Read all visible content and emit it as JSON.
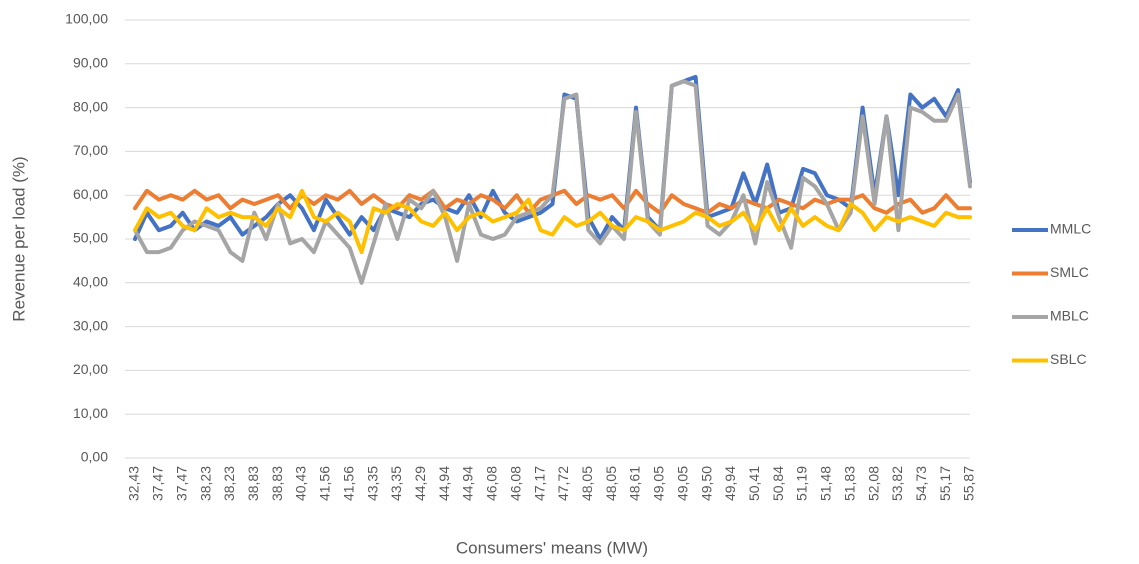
{
  "chart_data": {
    "type": "line",
    "x_label": "Consumers' means (MW)",
    "y_label": "Revenue per load (%)",
    "categories": [
      "32,43",
      null,
      "37,47",
      null,
      "37,47",
      null,
      "38,23",
      null,
      "38,23",
      null,
      "38,83",
      null,
      "38,83",
      null,
      "40,43",
      null,
      "41,56",
      null,
      "41,56",
      null,
      "43,35",
      null,
      "43,35",
      null,
      "44,29",
      null,
      "44,94",
      null,
      "44,94",
      null,
      "46,08",
      null,
      "46,08",
      null,
      "47,17",
      null,
      "47,72",
      null,
      "48,05",
      null,
      "48,05",
      null,
      "48,61",
      null,
      "49,05",
      null,
      "49,05",
      null,
      "49,50",
      null,
      "49,94",
      null,
      "50,41",
      null,
      "50,84",
      null,
      "51,19",
      null,
      "51,48",
      null,
      "51,83",
      null,
      "52,08",
      null,
      "53,82",
      null,
      "54,73",
      null,
      "55,17",
      null,
      "55,87"
    ],
    "series": [
      {
        "name": "MMLC",
        "color": "#4472c4",
        "values": [
          50,
          56,
          52,
          53,
          56,
          52,
          54,
          53,
          55,
          51,
          53,
          55,
          58,
          60,
          57,
          52,
          59,
          55,
          51,
          55,
          52,
          57,
          56,
          55,
          58,
          59,
          57,
          56,
          60,
          55,
          61,
          56,
          54,
          55,
          56,
          58,
          83,
          82,
          55,
          50,
          55,
          52,
          80,
          55,
          52,
          85,
          86,
          87,
          55,
          56,
          57,
          65,
          58,
          67,
          56,
          57,
          66,
          65,
          60,
          59,
          57,
          80,
          60,
          78,
          60,
          83,
          80,
          82,
          78,
          84,
          63
        ]
      },
      {
        "name": "SMLC",
        "color": "#ed7d31",
        "values": [
          57,
          61,
          59,
          60,
          59,
          61,
          59,
          60,
          57,
          59,
          58,
          59,
          60,
          57,
          60,
          58,
          60,
          59,
          61,
          58,
          60,
          58,
          57,
          60,
          59,
          61,
          57,
          59,
          58,
          60,
          59,
          57,
          60,
          56,
          59,
          60,
          61,
          58,
          60,
          59,
          60,
          57,
          61,
          58,
          56,
          60,
          58,
          57,
          56,
          58,
          57,
          59,
          58,
          57,
          59,
          58,
          57,
          59,
          58,
          59,
          59,
          60,
          57,
          56,
          58,
          59,
          56,
          57,
          60,
          57,
          57
        ]
      },
      {
        "name": "MBLC",
        "color": "#a5a5a5",
        "values": [
          52,
          47,
          47,
          48,
          52,
          54,
          53,
          52,
          47,
          45,
          56,
          50,
          58,
          49,
          50,
          47,
          54,
          51,
          48,
          40,
          49,
          58,
          50,
          59,
          57,
          61,
          55,
          45,
          58,
          51,
          50,
          51,
          55,
          56,
          57,
          60,
          82,
          83,
          52,
          49,
          53,
          50,
          79,
          54,
          51,
          85,
          86,
          85,
          53,
          51,
          54,
          60,
          49,
          63,
          55,
          48,
          64,
          62,
          58,
          52,
          56,
          78,
          58,
          78,
          52,
          80,
          79,
          77,
          77,
          83,
          62
        ]
      },
      {
        "name": "SBLC",
        "color": "#ffc000",
        "values": [
          52,
          57,
          55,
          56,
          53,
          52,
          57,
          55,
          56,
          55,
          55,
          53,
          57,
          55,
          61,
          55,
          54,
          56,
          54,
          47,
          57,
          56,
          58,
          57,
          54,
          53,
          56,
          52,
          55,
          56,
          54,
          55,
          56,
          59,
          52,
          51,
          55,
          53,
          54,
          56,
          53,
          52,
          55,
          54,
          52,
          53,
          54,
          56,
          55,
          53,
          54,
          56,
          52,
          57,
          52,
          57,
          53,
          55,
          53,
          52,
          58,
          56,
          52,
          55,
          54,
          55,
          54,
          53,
          56,
          55,
          55
        ]
      }
    ],
    "ylim": [
      0,
      100
    ],
    "yticks": [
      {
        "value": 0,
        "label": "0,00"
      },
      {
        "value": 10,
        "label": "10,00"
      },
      {
        "value": 20,
        "label": "20,00"
      },
      {
        "value": 30,
        "label": "30,00"
      },
      {
        "value": 40,
        "label": "40,00"
      },
      {
        "value": 50,
        "label": "50,00"
      },
      {
        "value": 60,
        "label": "60,00"
      },
      {
        "value": 70,
        "label": "70,00"
      },
      {
        "value": 80,
        "label": "80,00"
      },
      {
        "value": 90,
        "label": "90,00"
      },
      {
        "value": 100,
        "label": "100,00"
      }
    ],
    "grid": true,
    "legend": "right"
  }
}
